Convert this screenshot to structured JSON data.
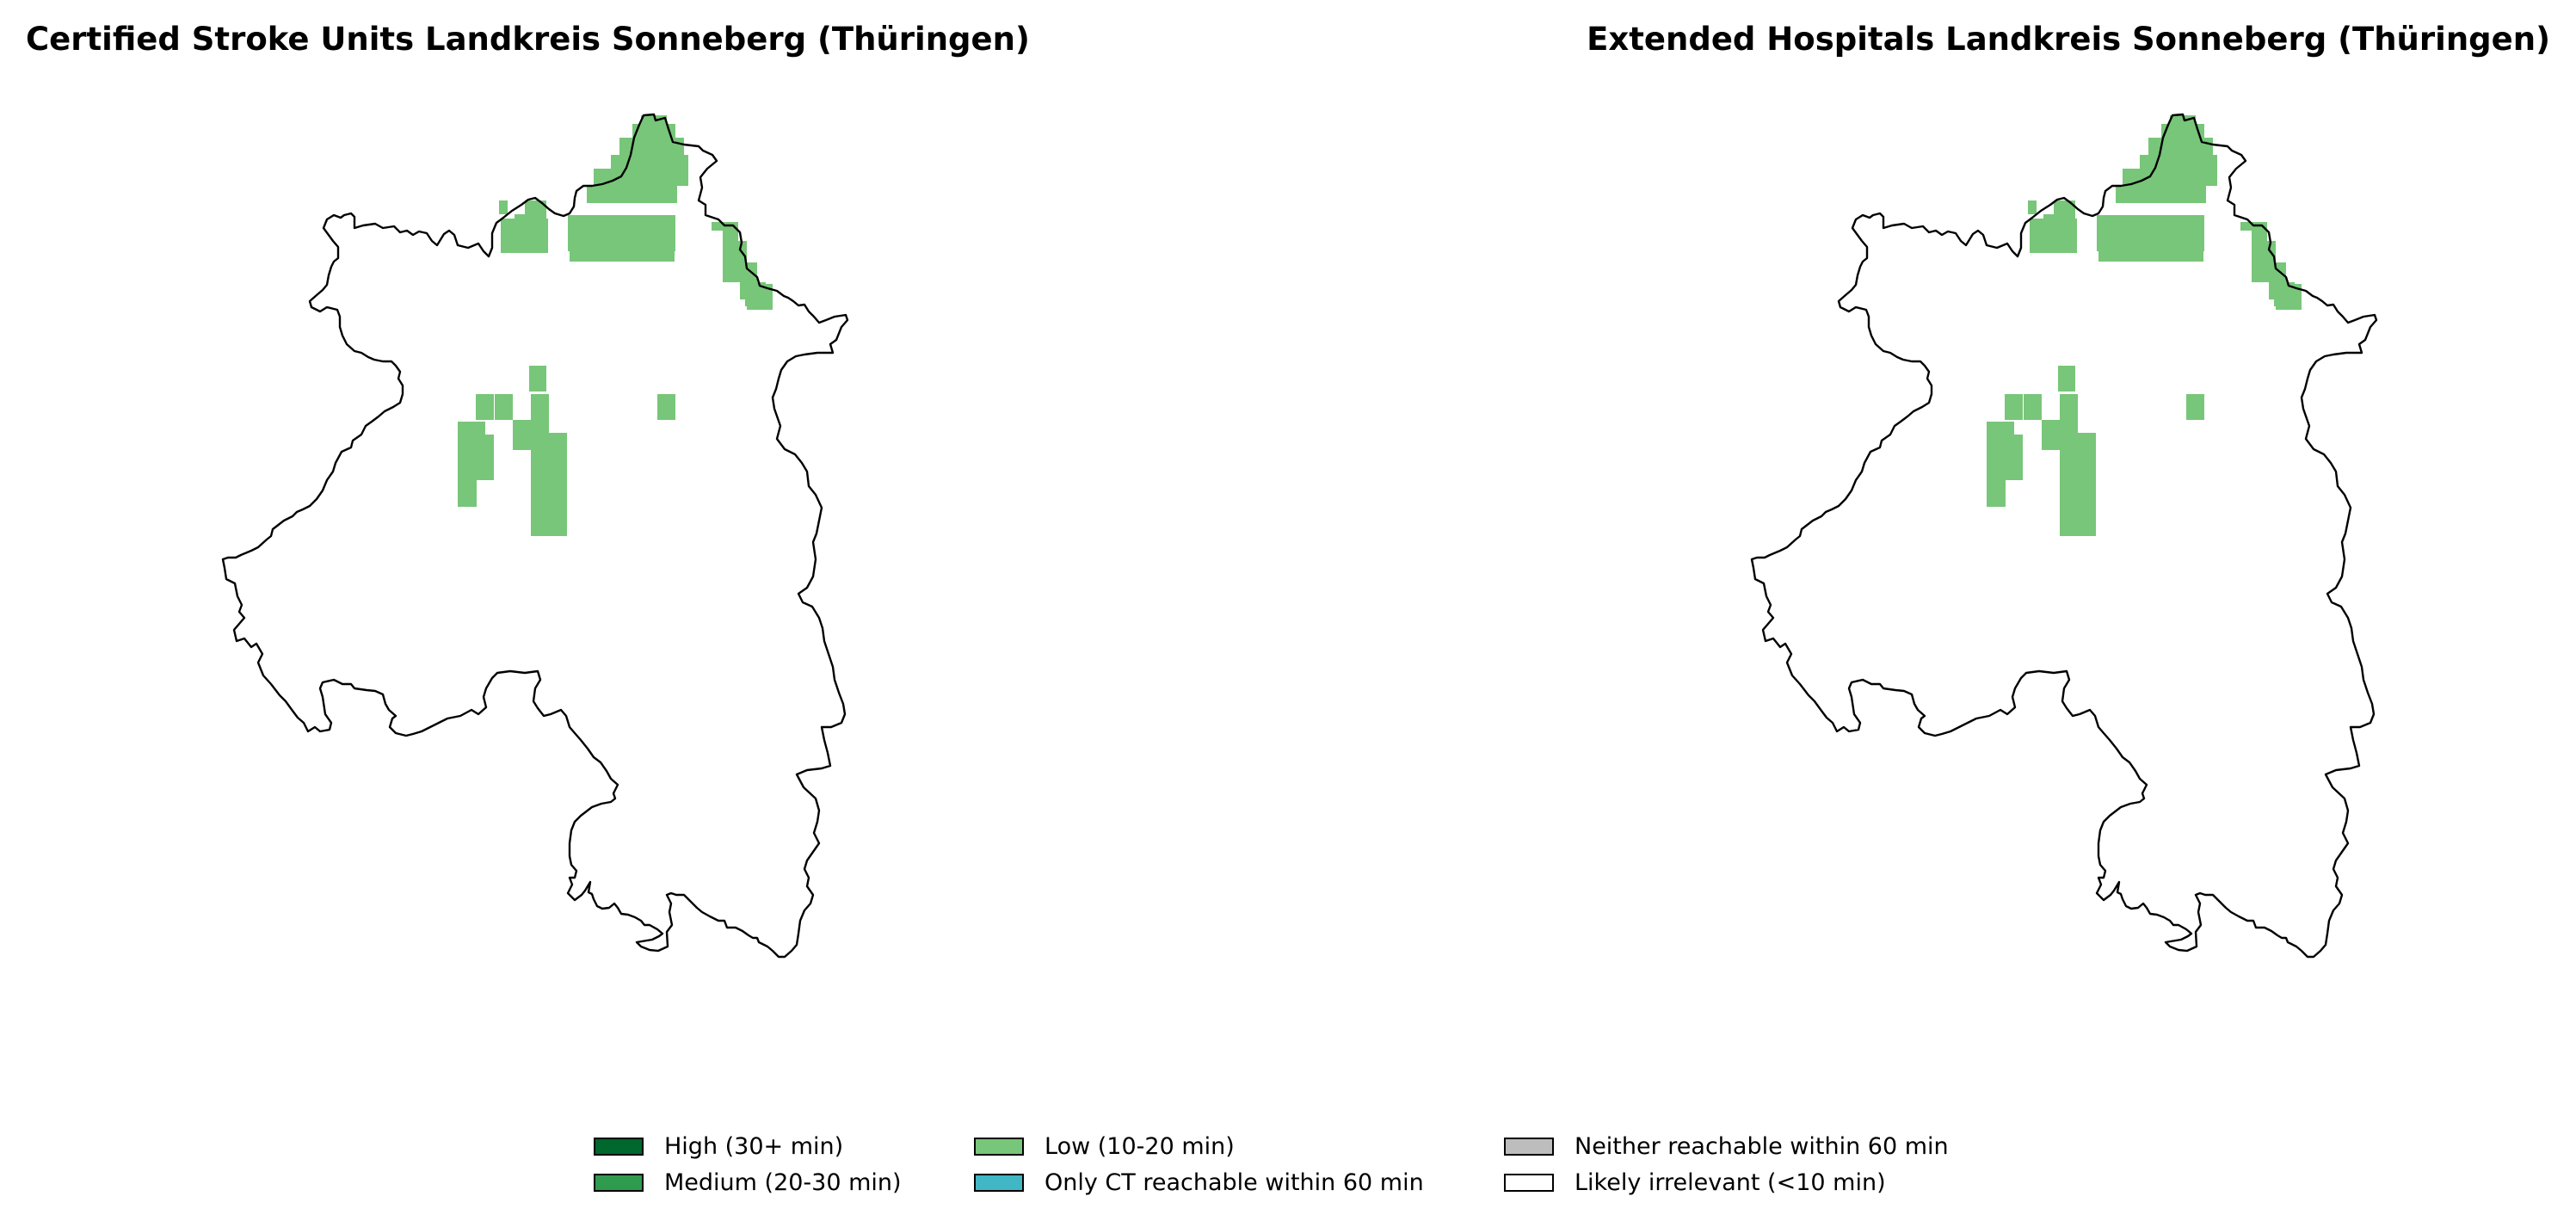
{
  "panels": [
    {
      "title": "Certified Stroke Units Landkreis Sonneberg (Thüringen)"
    },
    {
      "title": "Extended Hospitals Landkreis Sonneberg (Thüringen)"
    }
  ],
  "legend": [
    {
      "label": "High (30+ min)",
      "color": "#00672d"
    },
    {
      "label": "Medium (20-30 min)",
      "color": "#2f9b4f"
    },
    {
      "label": "Low (10-20 min)",
      "color": "#78c679"
    },
    {
      "label": "Only CT reachable within 60 min",
      "color": "#41b6c4"
    },
    {
      "label": "Neither reachable within 60 min",
      "color": "#bdbdbd"
    },
    {
      "label": "Likely irrelevant (<10 min)",
      "color": "#ffffff"
    }
  ],
  "region_color": "#78c679"
}
